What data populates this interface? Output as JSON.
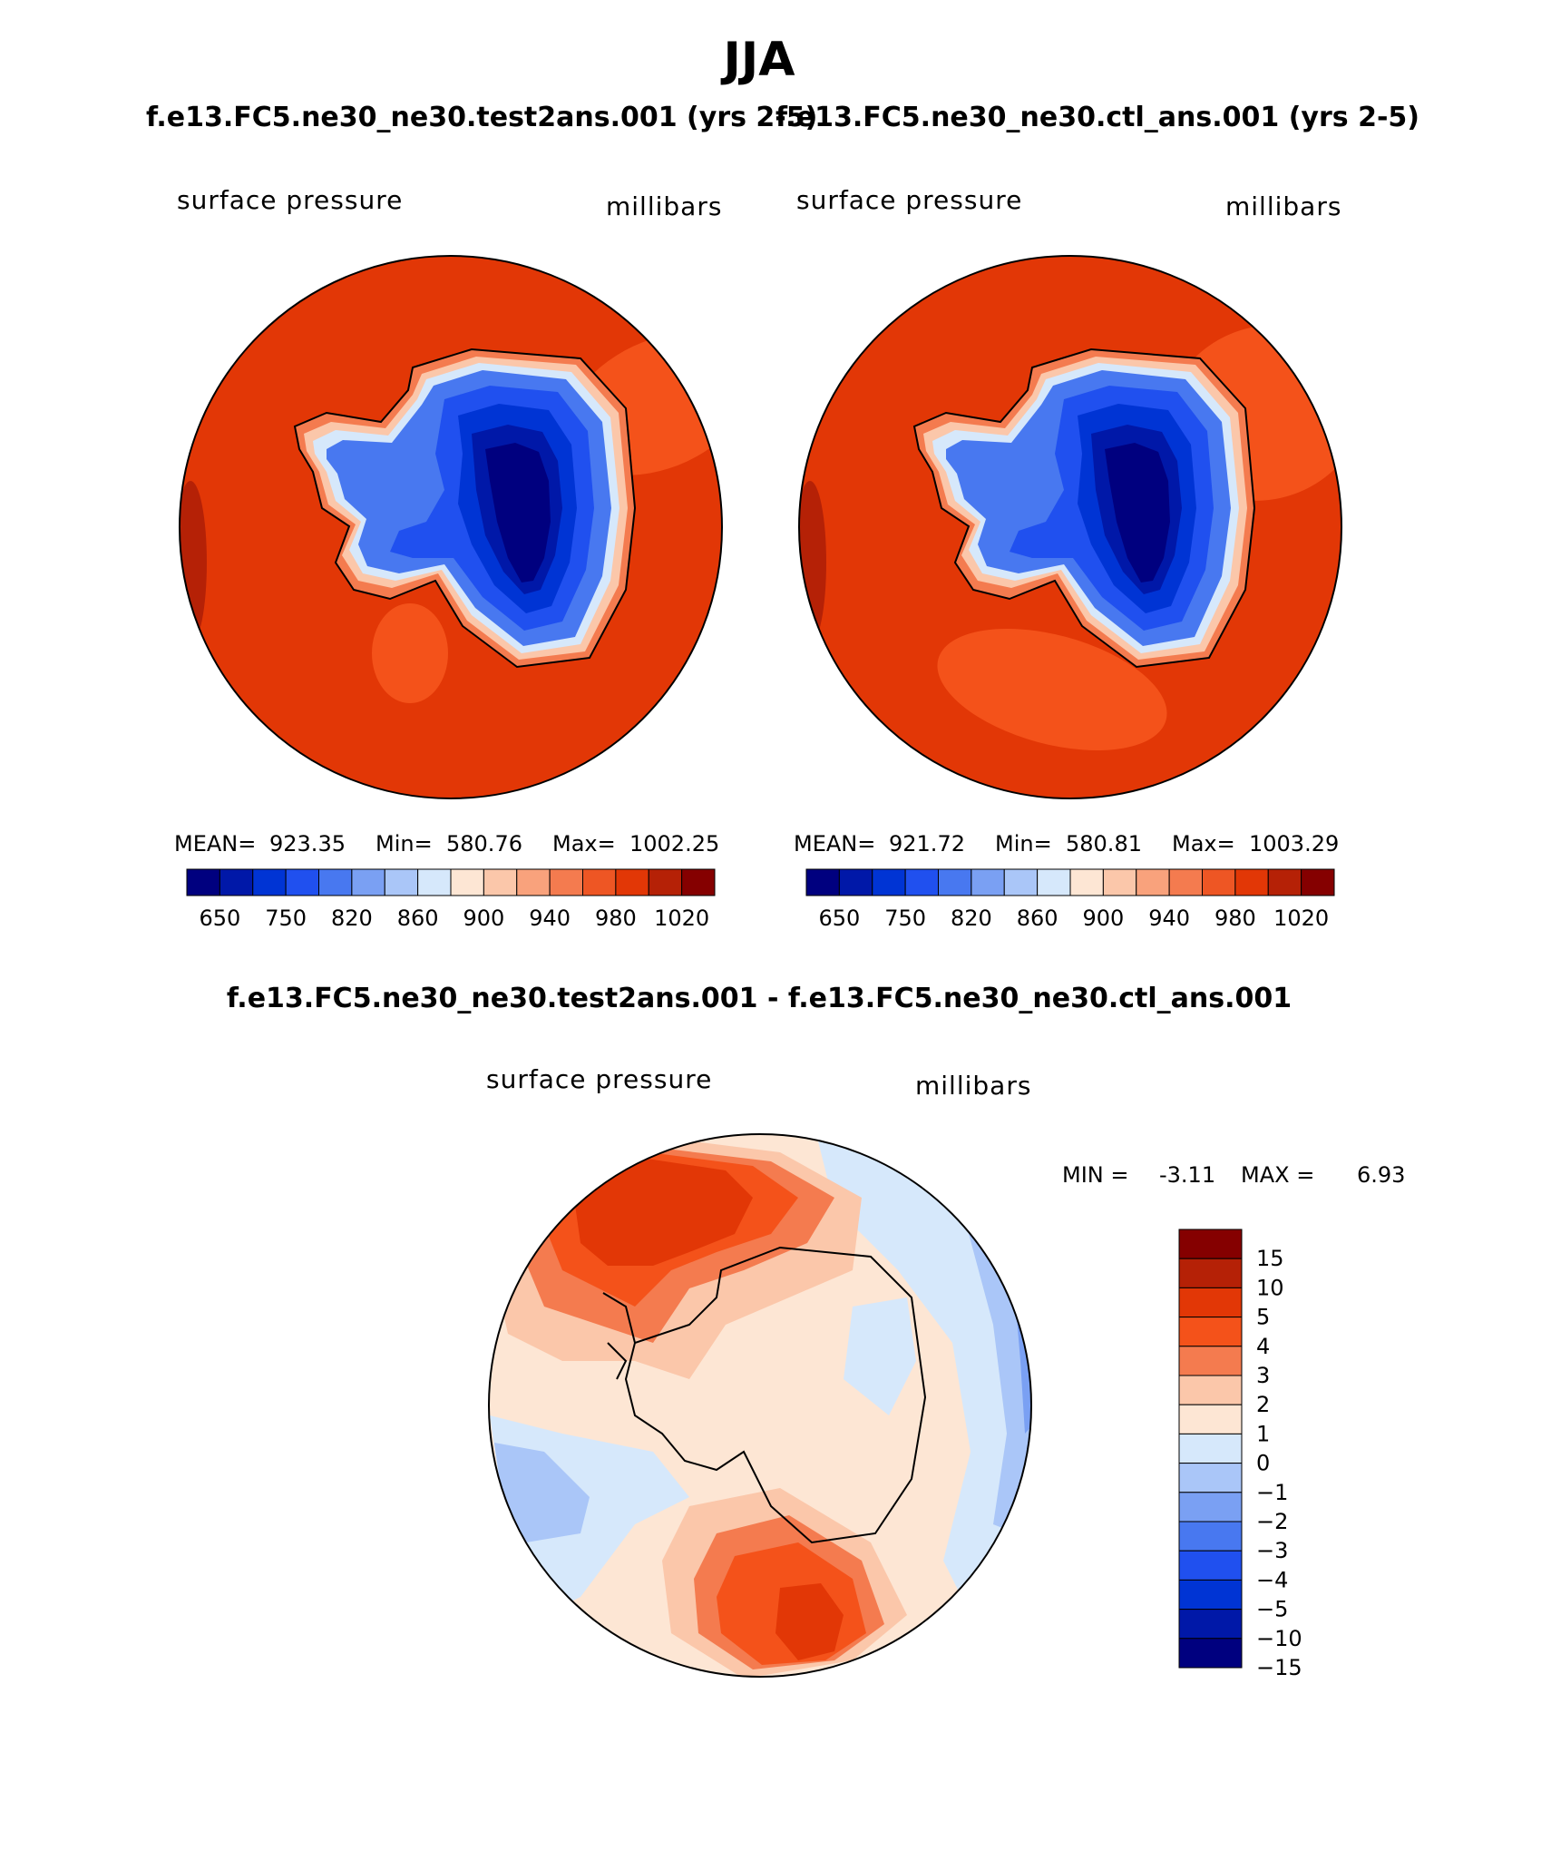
{
  "season_title": "JJA",
  "header": {
    "case_left": "f.e13.FC5.ne30_ne30.test2ans.001 (yrs 2-5)",
    "case_right": "f.e13.FC5.ne30_ne30.ctl_ans.001 (yrs 2-5)"
  },
  "panels": [
    {
      "variable": "surface pressure",
      "units": "millibars",
      "stats": {
        "mean_label": "MEAN=",
        "mean": "923.35",
        "min_label": "Min=",
        "min": "580.76",
        "max_label": "Max=",
        "max": "1002.25"
      }
    },
    {
      "variable": "surface pressure",
      "units": "millibars",
      "stats": {
        "mean_label": "MEAN=",
        "mean": "921.72",
        "min_label": "Min=",
        "min": "580.81",
        "max_label": "Max=",
        "max": "1003.29"
      }
    }
  ],
  "abs_colorbar": {
    "colors": [
      "#00007f",
      "#0018a8",
      "#0034d4",
      "#2050ef",
      "#4878f0",
      "#7aa0f3",
      "#aac6f8",
      "#d6e8fb",
      "#fde6d4",
      "#fbc7aa",
      "#f9a27c",
      "#f47b4f",
      "#ee5624",
      "#e23706",
      "#b52106",
      "#850000"
    ],
    "tick_labels": [
      "650",
      "750",
      "820",
      "860",
      "900",
      "940",
      "980",
      "1020"
    ]
  },
  "diff_panel": {
    "title": "f.e13.FC5.ne30_ne30.test2ans.001 - f.e13.FC5.ne30_ne30.ctl_ans.001",
    "variable": "surface pressure",
    "units": "millibars",
    "min_label": "MIN =",
    "min": "-3.11",
    "max_label": "MAX =",
    "max": "6.93"
  },
  "diff_colorbar": {
    "colors_top_to_bottom": [
      "#850000",
      "#b52106",
      "#e23706",
      "#f4521a",
      "#f47b4f",
      "#fbc7aa",
      "#fde6d4",
      "#d6e8fb",
      "#aac6f8",
      "#7aa0f3",
      "#4878f0",
      "#2050ef",
      "#0034d4",
      "#0018a8",
      "#00007f"
    ],
    "tick_labels": [
      "15",
      "10",
      "5",
      "4",
      "3",
      "2",
      "1",
      "0",
      "-1",
      "-2",
      "-3",
      "-4",
      "-5",
      "-10",
      "-15"
    ]
  },
  "colors": {
    "ocean": "#e23706",
    "ocean_light": "#f4521a",
    "diff_neutral": "#fde6d4"
  }
}
